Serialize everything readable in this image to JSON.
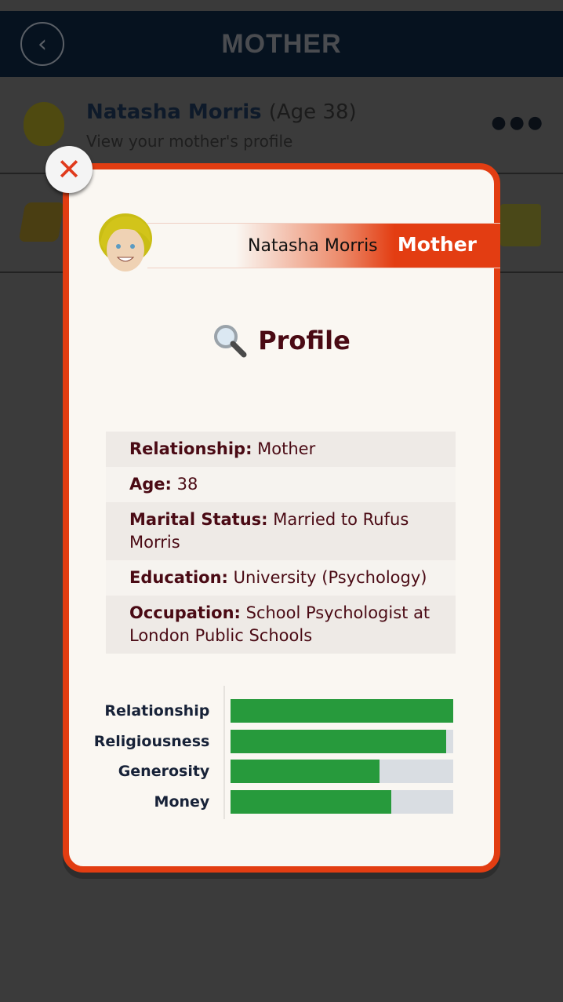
{
  "header": {
    "title": "MOTHER",
    "back_icon": "chevron-left-icon"
  },
  "list": {
    "item1": {
      "name": "Natasha Morris",
      "age": "(Age 38)",
      "subtitle": "View your mother's profile",
      "menu_icon": "more-dots-icon"
    }
  },
  "modal": {
    "close_icon": "close-x-icon",
    "name": "Natasha Morris",
    "relation": "Mother",
    "title": "Profile",
    "title_icon": "magnifier-icon",
    "info": [
      {
        "label": "Relationship:",
        "value": "Mother"
      },
      {
        "label": "Age:",
        "value": "38"
      },
      {
        "label": "Marital Status:",
        "value": "Married to Rufus Morris"
      },
      {
        "label": "Education:",
        "value": "University (Psychology)"
      },
      {
        "label": "Occupation:",
        "value": "School Psychologist at London Public Schools"
      }
    ],
    "stats": [
      {
        "label": "Relationship",
        "percent": 100
      },
      {
        "label": "Religiousness",
        "percent": 97
      },
      {
        "label": "Generosity",
        "percent": 67
      },
      {
        "label": "Money",
        "percent": 72
      }
    ],
    "colors": {
      "accent": "#e23d12",
      "bar_fill": "#279a3c",
      "bar_track": "#d9dde2",
      "text": "#4a0a14"
    }
  }
}
